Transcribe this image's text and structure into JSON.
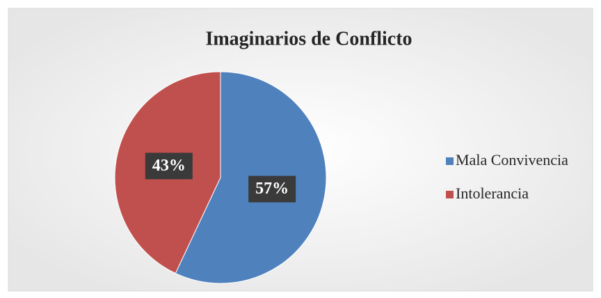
{
  "chart_data": {
    "type": "pie",
    "title": "Imaginarios de Conflicto",
    "categories": [
      "Mala Convivencia",
      "Intolerancia"
    ],
    "values": [
      57,
      43
    ],
    "value_labels": [
      "57%",
      "43%"
    ],
    "colors": [
      "#4f81bd",
      "#c0504d"
    ],
    "legend": "right"
  }
}
